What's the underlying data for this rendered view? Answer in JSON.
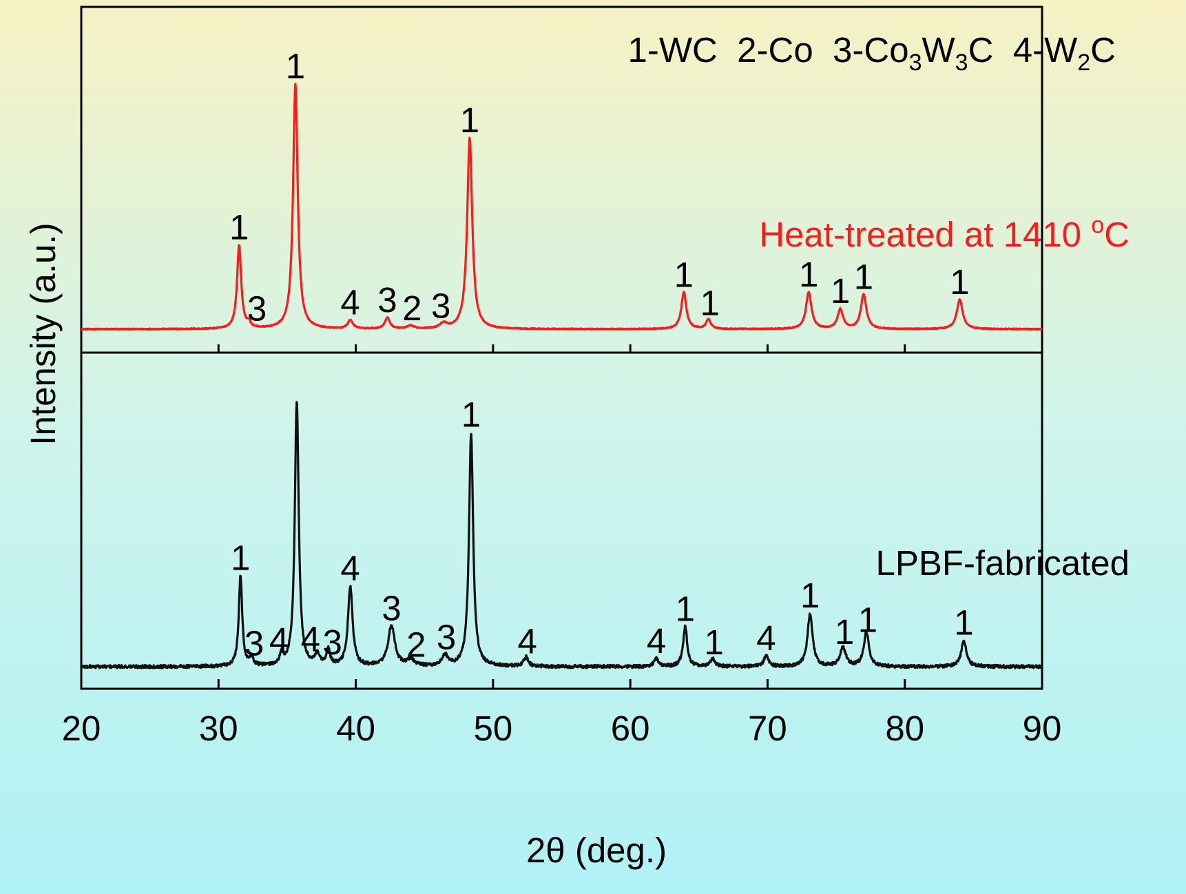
{
  "chart_data": {
    "type": "line",
    "xlabel": "2θ (deg.)",
    "ylabel": "Intensity (a.u.)",
    "xlim": [
      20,
      90
    ],
    "xticks": [
      20,
      30,
      40,
      50,
      60,
      70,
      80,
      90
    ],
    "grid": false,
    "background_gradient": [
      "#f7f1c4",
      "#cdf4ec",
      "#b0f1f6"
    ],
    "legend": {
      "placement": "top-right",
      "items": [
        {
          "num": "1",
          "prefix": "WC",
          "sub": "",
          "suffix": ""
        },
        {
          "num": "2",
          "prefix": "Co",
          "sub": "",
          "suffix": ""
        },
        {
          "num": "3",
          "prefix": "Co",
          "sub": "3",
          "suffix": "W",
          "sub2": "3",
          "suffix2": "C"
        },
        {
          "num": "4",
          "prefix": "W",
          "sub": "2",
          "suffix": "C"
        }
      ]
    },
    "series": [
      {
        "name": "Heat-treated at 1410 °C",
        "label_main": "Heat-treated at 1410 ",
        "label_sup": "o",
        "label_end": "C",
        "color": "#ff1a1a",
        "panel": "top",
        "peaks": [
          {
            "x": 31.5,
            "h": 0.34,
            "w": 0.18,
            "phase": "1"
          },
          {
            "x": 32.2,
            "h": 0.02,
            "w": 0.15,
            "phase": "3"
          },
          {
            "x": 35.6,
            "h": 1.0,
            "w": 0.2,
            "phase": "1"
          },
          {
            "x": 39.6,
            "h": 0.035,
            "w": 0.22,
            "phase": "4"
          },
          {
            "x": 42.3,
            "h": 0.045,
            "w": 0.22,
            "phase": "3"
          },
          {
            "x": 44.0,
            "h": 0.012,
            "w": 0.3,
            "phase": "2"
          },
          {
            "x": 46.4,
            "h": 0.02,
            "w": 0.3,
            "phase": "3"
          },
          {
            "x": 48.3,
            "h": 0.78,
            "w": 0.22,
            "phase": "1"
          },
          {
            "x": 63.9,
            "h": 0.15,
            "w": 0.22,
            "phase": "1"
          },
          {
            "x": 65.7,
            "h": 0.04,
            "w": 0.2,
            "phase": "1"
          },
          {
            "x": 73.0,
            "h": 0.15,
            "w": 0.24,
            "phase": "1"
          },
          {
            "x": 75.3,
            "h": 0.08,
            "w": 0.24,
            "phase": "1"
          },
          {
            "x": 77.0,
            "h": 0.14,
            "w": 0.24,
            "phase": "1"
          },
          {
            "x": 84.0,
            "h": 0.12,
            "w": 0.26,
            "phase": "1"
          }
        ],
        "annotations": [
          {
            "x": 31.5,
            "text": "1"
          },
          {
            "x": 32.8,
            "text": "3"
          },
          {
            "x": 35.6,
            "text": "1"
          },
          {
            "x": 39.6,
            "text": "4"
          },
          {
            "x": 42.3,
            "text": "3"
          },
          {
            "x": 44.1,
            "text": "2"
          },
          {
            "x": 46.2,
            "text": "3"
          },
          {
            "x": 48.3,
            "text": "1"
          },
          {
            "x": 63.9,
            "text": "1"
          },
          {
            "x": 65.8,
            "text": "1"
          },
          {
            "x": 73.0,
            "text": "1"
          },
          {
            "x": 75.3,
            "text": "1"
          },
          {
            "x": 77.0,
            "text": "1"
          },
          {
            "x": 84.0,
            "text": "1"
          }
        ]
      },
      {
        "name": "LPBF-fabricated",
        "label_main": "LPBF-fabricated",
        "label_sup": "",
        "label_end": "",
        "color": "#111111",
        "panel": "bottom",
        "peaks": [
          {
            "x": 31.6,
            "h": 0.34,
            "w": 0.15,
            "phase": "1"
          },
          {
            "x": 32.4,
            "h": 0.03,
            "w": 0.15,
            "phase": "3"
          },
          {
            "x": 34.6,
            "h": 0.04,
            "w": 0.15,
            "phase": "4"
          },
          {
            "x": 35.7,
            "h": 1.0,
            "w": 0.17,
            "phase": "1"
          },
          {
            "x": 37.2,
            "h": 0.04,
            "w": 0.2,
            "phase": "4"
          },
          {
            "x": 38.0,
            "h": 0.06,
            "w": 0.15,
            "phase": "3"
          },
          {
            "x": 39.6,
            "h": 0.3,
            "w": 0.2,
            "phase": "4"
          },
          {
            "x": 42.6,
            "h": 0.15,
            "w": 0.3,
            "phase": "3"
          },
          {
            "x": 44.0,
            "h": 0.025,
            "w": 0.3,
            "phase": "2"
          },
          {
            "x": 46.5,
            "h": 0.04,
            "w": 0.25,
            "phase": "3"
          },
          {
            "x": 48.4,
            "h": 0.88,
            "w": 0.18,
            "phase": "1"
          },
          {
            "x": 52.4,
            "h": 0.035,
            "w": 0.2,
            "phase": "4"
          },
          {
            "x": 61.9,
            "h": 0.03,
            "w": 0.2,
            "phase": "4"
          },
          {
            "x": 64.0,
            "h": 0.15,
            "w": 0.18,
            "phase": "1"
          },
          {
            "x": 66.0,
            "h": 0.03,
            "w": 0.2,
            "phase": "1"
          },
          {
            "x": 69.9,
            "h": 0.04,
            "w": 0.2,
            "phase": "4"
          },
          {
            "x": 73.1,
            "h": 0.2,
            "w": 0.22,
            "phase": "1"
          },
          {
            "x": 75.5,
            "h": 0.07,
            "w": 0.25,
            "phase": "1"
          },
          {
            "x": 77.2,
            "h": 0.13,
            "w": 0.22,
            "phase": "1"
          },
          {
            "x": 84.3,
            "h": 0.1,
            "w": 0.22,
            "phase": "1"
          }
        ],
        "annotations": [
          {
            "x": 31.6,
            "text": "1"
          },
          {
            "x": 32.6,
            "text": "3"
          },
          {
            "x": 34.4,
            "text": "4"
          },
          {
            "x": 36.7,
            "text": "4"
          },
          {
            "x": 38.3,
            "text": "3"
          },
          {
            "x": 39.6,
            "text": "4"
          },
          {
            "x": 42.6,
            "text": "3"
          },
          {
            "x": 44.4,
            "text": "2"
          },
          {
            "x": 46.6,
            "text": "3"
          },
          {
            "x": 48.4,
            "text": "1"
          },
          {
            "x": 52.5,
            "text": "4"
          },
          {
            "x": 61.9,
            "text": "4"
          },
          {
            "x": 64.0,
            "text": "1"
          },
          {
            "x": 66.1,
            "text": "1"
          },
          {
            "x": 69.9,
            "text": "4"
          },
          {
            "x": 73.1,
            "text": "1"
          },
          {
            "x": 75.6,
            "text": "1"
          },
          {
            "x": 77.3,
            "text": "1"
          },
          {
            "x": 84.3,
            "text": "1"
          }
        ]
      }
    ]
  }
}
